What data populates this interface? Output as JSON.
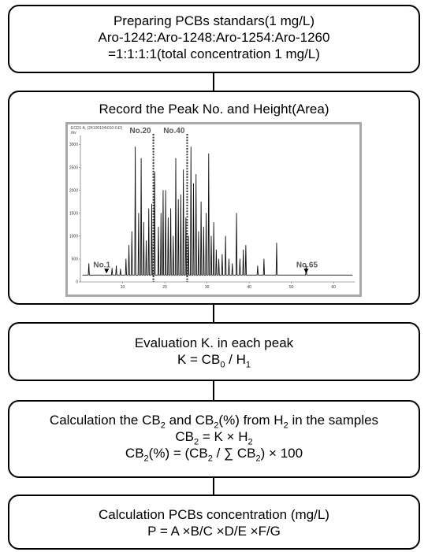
{
  "steps": {
    "prepare": {
      "line1": "Preparing PCBs standars(1 mg/L)",
      "line2": "Aro-1242:Aro-1248:Aro-1254:Aro-1260",
      "line3": "=1:1:1:1(total concentration 1 mg/L)"
    },
    "record": {
      "title": "Record the Peak No. and Height(Area)"
    },
    "evaluate": {
      "title": "Evaluation K. in each peak",
      "formula_lhs": "K = CB",
      "formula_sub1": "0",
      "formula_mid": " / H",
      "formula_sub2": "1"
    },
    "calculate_cb2": {
      "t_pre": "Calculation the CB",
      "t_sub1": "2",
      "t_mid": " and CB",
      "t_sub2": "2",
      "t_mid2": "(%) from H",
      "t_sub3": "2",
      "t_post": " in the samples",
      "f1_a": "CB",
      "f1_sub1": "2",
      "f1_b": " = K × H",
      "f1_sub2": "2",
      "f2_a": "CB",
      "f2_sub1": "2",
      "f2_b": "(%) = (CB",
      "f2_sub2": "2",
      "f2_c": " / ∑ CB",
      "f2_sub3": "2",
      "f2_d": ") × 100"
    },
    "concentration": {
      "title": "Calculation PCBs concentration (mg/L)",
      "formula": "P = A ×B/C ×D/E ×F/G"
    }
  },
  "chart_data": {
    "type": "line",
    "header": "ECD1 A, (24100104\\010-0.D)",
    "yunit": "mv",
    "xlim": [
      0,
      65
    ],
    "ylim": [
      0,
      3200
    ],
    "xticks": [
      10,
      20,
      30,
      40,
      50,
      60
    ],
    "yticks": [
      0,
      500,
      1000,
      1500,
      2000,
      2500,
      3000
    ],
    "baseline": 150,
    "peaks": [
      {
        "x": 2.0,
        "h": 400
      },
      {
        "x": 7.5,
        "h": 300
      },
      {
        "x": 8.5,
        "h": 350
      },
      {
        "x": 9.5,
        "h": 280
      },
      {
        "x": 10.8,
        "h": 500
      },
      {
        "x": 11.5,
        "h": 800
      },
      {
        "x": 12.2,
        "h": 1100
      },
      {
        "x": 13.0,
        "h": 2950
      },
      {
        "x": 13.8,
        "h": 1500
      },
      {
        "x": 14.4,
        "h": 2700
      },
      {
        "x": 15.0,
        "h": 1300
      },
      {
        "x": 15.6,
        "h": 900
      },
      {
        "x": 16.2,
        "h": 1600
      },
      {
        "x": 16.9,
        "h": 1700
      },
      {
        "x": 17.6,
        "h": 2400
      },
      {
        "x": 18.5,
        "h": 1200
      },
      {
        "x": 19.1,
        "h": 1500
      },
      {
        "x": 19.6,
        "h": 2000
      },
      {
        "x": 20.2,
        "h": 2000
      },
      {
        "x": 20.8,
        "h": 1400
      },
      {
        "x": 21.4,
        "h": 1600
      },
      {
        "x": 22.0,
        "h": 1000
      },
      {
        "x": 22.6,
        "h": 2700
      },
      {
        "x": 23.2,
        "h": 1800
      },
      {
        "x": 23.8,
        "h": 1900
      },
      {
        "x": 24.4,
        "h": 2450
      },
      {
        "x": 25.0,
        "h": 1400
      },
      {
        "x": 25.6,
        "h": 1000
      },
      {
        "x": 26.2,
        "h": 2950
      },
      {
        "x": 26.8,
        "h": 2150
      },
      {
        "x": 27.4,
        "h": 2350
      },
      {
        "x": 28.0,
        "h": 1100
      },
      {
        "x": 28.6,
        "h": 1750
      },
      {
        "x": 29.2,
        "h": 1200
      },
      {
        "x": 29.8,
        "h": 1500
      },
      {
        "x": 30.4,
        "h": 2800
      },
      {
        "x": 31.0,
        "h": 1000
      },
      {
        "x": 31.6,
        "h": 1300
      },
      {
        "x": 32.2,
        "h": 700
      },
      {
        "x": 32.8,
        "h": 500
      },
      {
        "x": 33.6,
        "h": 600
      },
      {
        "x": 34.4,
        "h": 1000
      },
      {
        "x": 35.2,
        "h": 500
      },
      {
        "x": 36.0,
        "h": 400
      },
      {
        "x": 37.0,
        "h": 1500
      },
      {
        "x": 37.8,
        "h": 500
      },
      {
        "x": 38.6,
        "h": 700
      },
      {
        "x": 39.2,
        "h": 800
      },
      {
        "x": 42.0,
        "h": 350
      },
      {
        "x": 43.5,
        "h": 500
      },
      {
        "x": 46.5,
        "h": 850
      },
      {
        "x": 53.5,
        "h": 350
      }
    ],
    "markers": [
      {
        "label": "No.20",
        "x": 17.3
      },
      {
        "label": "No.40",
        "x": 25.3
      }
    ],
    "annotations": [
      {
        "label": "No.1",
        "x": 6.2
      },
      {
        "label": "No.65",
        "x": 53.5
      }
    ]
  }
}
